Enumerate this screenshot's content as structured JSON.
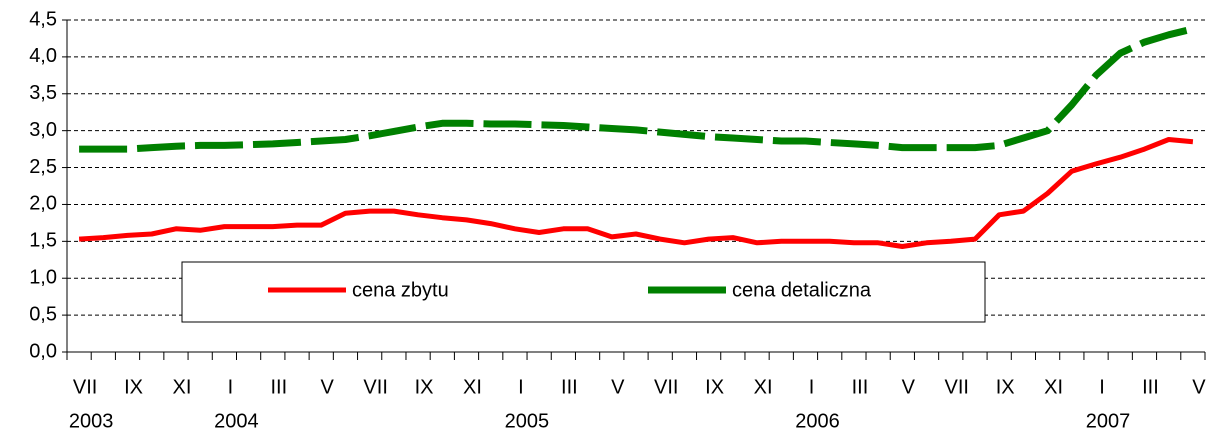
{
  "chart_data": {
    "type": "line",
    "categories": [
      "VII",
      null,
      "IX",
      null,
      "XI",
      null,
      "I",
      null,
      "III",
      null,
      "V",
      null,
      "VII",
      null,
      "IX",
      null,
      "XI",
      null,
      "I",
      null,
      "III",
      null,
      "V",
      null,
      "VII",
      null,
      "IX",
      null,
      "XI",
      null,
      "I",
      null,
      "III",
      null,
      "V",
      null,
      "VII",
      null,
      "IX",
      null,
      "XI",
      null,
      "I",
      null,
      "III",
      null,
      "V"
    ],
    "year_labels": [
      "2003",
      null,
      null,
      null,
      null,
      null,
      "2004",
      null,
      null,
      null,
      null,
      null,
      null,
      null,
      null,
      null,
      null,
      null,
      "2005",
      null,
      null,
      null,
      null,
      null,
      null,
      null,
      null,
      null,
      null,
      null,
      "2006",
      null,
      null,
      null,
      null,
      null,
      null,
      null,
      null,
      null,
      null,
      null,
      "2007",
      null,
      null,
      null,
      null
    ],
    "series": [
      {
        "name": "cena zbytu",
        "color": "#ff0000",
        "style": "solid",
        "values": [
          1.53,
          1.55,
          1.58,
          1.6,
          1.67,
          1.65,
          1.7,
          1.7,
          1.7,
          1.72,
          1.72,
          1.88,
          1.91,
          1.91,
          1.86,
          1.82,
          1.79,
          1.74,
          1.67,
          1.62,
          1.67,
          1.67,
          1.56,
          1.6,
          1.53,
          1.48,
          1.53,
          1.55,
          1.48,
          1.5,
          1.5,
          1.5,
          1.48,
          1.48,
          1.43,
          1.48,
          1.5,
          1.53,
          1.86,
          1.91,
          2.15,
          2.45,
          2.55,
          2.64,
          2.75,
          2.88,
          2.85
        ]
      },
      {
        "name": "cena detaliczna",
        "color": "#008000",
        "style": "dashed",
        "values": [
          2.75,
          2.75,
          2.75,
          2.77,
          2.79,
          2.8,
          2.8,
          2.81,
          2.82,
          2.84,
          2.86,
          2.88,
          2.93,
          2.99,
          3.05,
          3.1,
          3.1,
          3.09,
          3.09,
          3.08,
          3.07,
          3.05,
          3.03,
          3.01,
          2.98,
          2.95,
          2.92,
          2.9,
          2.88,
          2.86,
          2.86,
          2.84,
          2.82,
          2.8,
          2.77,
          2.77,
          2.77,
          2.77,
          2.8,
          2.9,
          3.0,
          3.35,
          3.75,
          4.05,
          4.2,
          4.3,
          4.38
        ]
      }
    ],
    "ylim": [
      0,
      4.5
    ],
    "yticks": [
      {
        "value": 0,
        "label": "0,0"
      },
      {
        "value": 0.5,
        "label": "0,5"
      },
      {
        "value": 1,
        "label": "1,0"
      },
      {
        "value": 1.5,
        "label": "1,5"
      },
      {
        "value": 2,
        "label": "2,0"
      },
      {
        "value": 2.5,
        "label": "2,5"
      },
      {
        "value": 3,
        "label": "3,0"
      },
      {
        "value": 3.5,
        "label": "3,5"
      },
      {
        "value": 4,
        "label": "4,0"
      },
      {
        "value": 4.5,
        "label": "4,5"
      }
    ],
    "grid": true
  }
}
